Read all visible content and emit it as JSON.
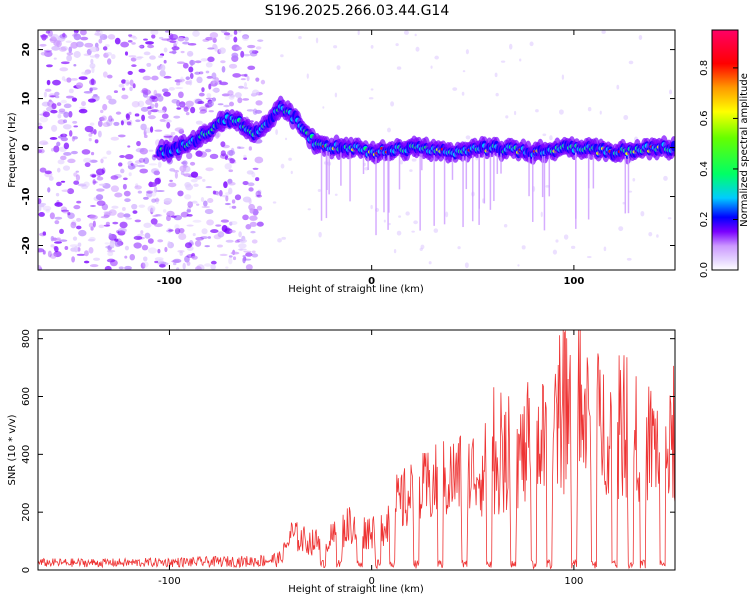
{
  "title": "S196.2025.266.03.44.G14",
  "chart_data": [
    {
      "type": "heatmap",
      "xlabel": "Height of straight line (km)",
      "ylabel": "Frequency (Hz)",
      "xlim": [
        -165,
        150
      ],
      "ylim": [
        -25,
        24
      ],
      "x_ticks": [
        -100,
        0,
        100
      ],
      "y_ticks": [
        -20,
        -10,
        0,
        10,
        20
      ],
      "ridge": {
        "x": [
          -105,
          -95,
          -85,
          -78,
          -72,
          -65,
          -58,
          -52,
          -45,
          -38,
          -32,
          -28,
          -20,
          -10,
          0,
          20,
          40,
          60,
          80,
          100,
          120,
          140,
          150
        ],
        "y": [
          -1,
          0,
          2,
          4,
          6,
          5,
          3,
          5,
          8,
          6,
          3,
          1,
          0,
          0,
          -1,
          0,
          -1,
          0,
          -1,
          0,
          -1,
          0,
          0
        ]
      },
      "colorbar": {
        "label": "Normalized spectral amplitude",
        "range": [
          0,
          0.95
        ],
        "ticks": [
          "0.0",
          "0.2",
          "0.4",
          "0.6",
          "0.8"
        ],
        "colors": [
          "#ffffff",
          "#cc99ff",
          "#7a00ff",
          "#0000ff",
          "#00ccff",
          "#00ff66",
          "#66ff00",
          "#ffff00",
          "#ff9900",
          "#ff0000",
          "#ff0066"
        ]
      }
    },
    {
      "type": "line",
      "xlabel": "Height of straight line (km)",
      "ylabel": "SNR (10 * v/v)",
      "xlim": [
        -165,
        150
      ],
      "ylim": [
        0,
        830
      ],
      "x_ticks": [
        -100,
        0,
        100
      ],
      "y_ticks": [
        0,
        200,
        400,
        600,
        800
      ],
      "series_color": "#ee3333",
      "envelope": {
        "x": [
          -165,
          -120,
          -60,
          -45,
          -40,
          -30,
          -20,
          -10,
          -5,
          5,
          12,
          20,
          30,
          40,
          50,
          60,
          70,
          80,
          90,
          100,
          110,
          120,
          130,
          140,
          150
        ],
        "y": [
          30,
          30,
          40,
          55,
          180,
          140,
          160,
          240,
          190,
          220,
          330,
          380,
          430,
          470,
          500,
          530,
          560,
          620,
          700,
          760,
          780,
          700,
          680,
          650,
          600
        ]
      },
      "dropouts_x": [
        -24,
        -16,
        -6,
        3,
        10,
        22,
        34,
        46,
        58,
        70,
        80,
        88,
        100,
        110,
        120,
        128,
        134,
        144
      ]
    }
  ]
}
